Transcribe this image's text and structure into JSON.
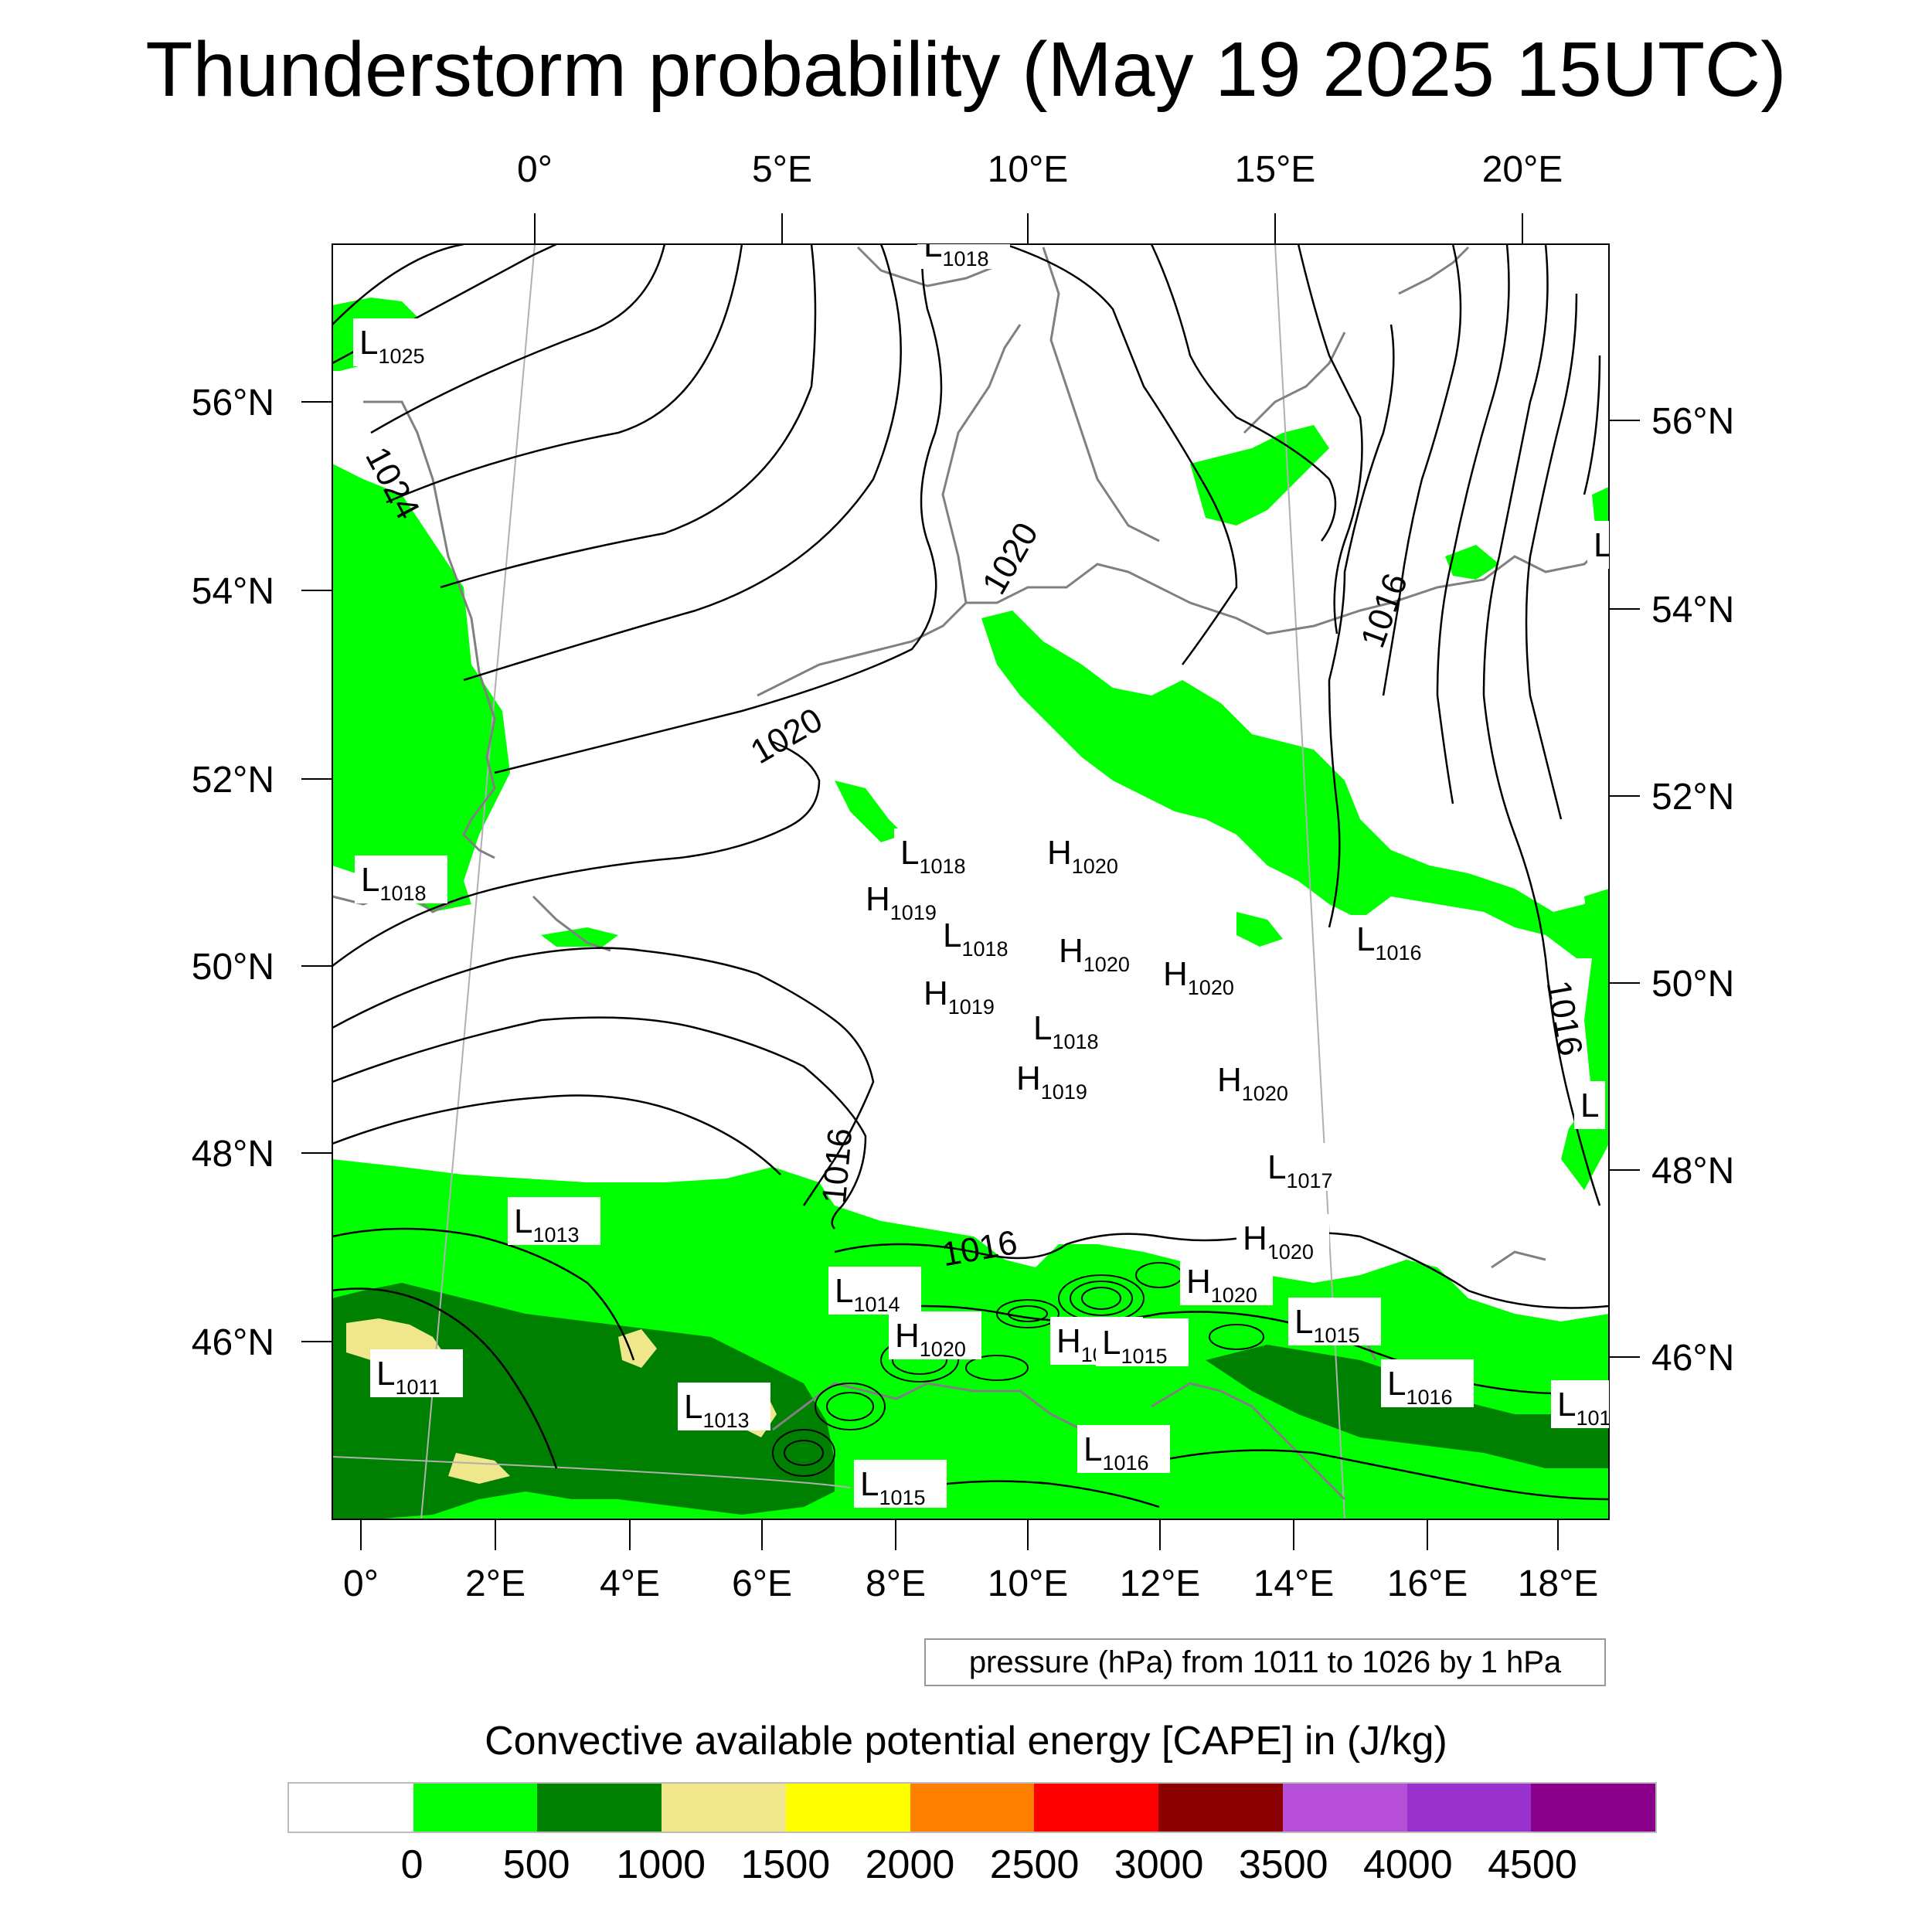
{
  "title": "Thunderstorm probability (May 19 2025 15UTC)",
  "top_lon_labels": [
    "0°",
    "5°E",
    "10°E",
    "15°E",
    "20°E"
  ],
  "bottom_lon_labels": [
    "0°",
    "2°E",
    "4°E",
    "6°E",
    "8°E",
    "10°E",
    "12°E",
    "14°E",
    "16°E",
    "18°E"
  ],
  "left_lat_labels": [
    "56°N",
    "54°N",
    "52°N",
    "50°N",
    "48°N",
    "46°N"
  ],
  "right_lat_labels": [
    "56°N",
    "54°N",
    "52°N",
    "50°N",
    "48°N",
    "46°N"
  ],
  "isobar_labels": [
    "1024",
    "1020",
    "1020",
    "1016",
    "1016",
    "1016",
    "1016"
  ],
  "pressure_centers": [
    {
      "letter": "L",
      "value": "1018"
    },
    {
      "letter": "L",
      "value": "1025"
    },
    {
      "letter": "L",
      "value": "1018"
    },
    {
      "letter": "L",
      "value": "1018"
    },
    {
      "letter": "H",
      "value": "1020"
    },
    {
      "letter": "H",
      "value": "1019"
    },
    {
      "letter": "L",
      "value": "1018"
    },
    {
      "letter": "H",
      "value": "1020"
    },
    {
      "letter": "H",
      "value": "1020"
    },
    {
      "letter": "H",
      "value": "1019"
    },
    {
      "letter": "L",
      "value": "1018"
    },
    {
      "letter": "H",
      "value": "1019"
    },
    {
      "letter": "H",
      "value": "1020"
    },
    {
      "letter": "L",
      "value": "1017"
    },
    {
      "letter": "L",
      "value": "1016"
    },
    {
      "letter": "L",
      "value": "1013"
    },
    {
      "letter": "H",
      "value": "1020"
    },
    {
      "letter": "H",
      "value": "1020"
    },
    {
      "letter": "L",
      "value": "1014"
    },
    {
      "letter": "H",
      "value": "1020"
    },
    {
      "letter": "H",
      "value": "10"
    },
    {
      "letter": "L",
      "value": "1015"
    },
    {
      "letter": "L",
      "value": "1015"
    },
    {
      "letter": "L",
      "value": "1011"
    },
    {
      "letter": "L",
      "value": "1013"
    },
    {
      "letter": "L",
      "value": "1016"
    },
    {
      "letter": "L",
      "value": "101"
    },
    {
      "letter": "L",
      "value": "1016"
    },
    {
      "letter": "L",
      "value": "1015"
    },
    {
      "letter": "L",
      "value": ""
    },
    {
      "letter": "L",
      "value": ""
    }
  ],
  "info_box": "pressure (hPa) from 1011 to 1026 by 1 hPa",
  "legend": {
    "title": "Convective available potential energy [CAPE] in (J/kg)",
    "colors": [
      "#ffffff",
      "#00ff00",
      "#008000",
      "#f0e68c",
      "#ffff00",
      "#ff8000",
      "#ff0000",
      "#8b0000",
      "#b84fd8",
      "#9932cc",
      "#8b008b"
    ],
    "labels": [
      "0",
      "500",
      "1000",
      "1500",
      "2000",
      "2500",
      "3000",
      "3500",
      "4000",
      "4500"
    ]
  },
  "colors": {
    "bright_green": "#00ff00",
    "dark_green": "#008000",
    "khaki": "#f0e68c",
    "coastline": "#808080",
    "isobar": "#000000"
  }
}
